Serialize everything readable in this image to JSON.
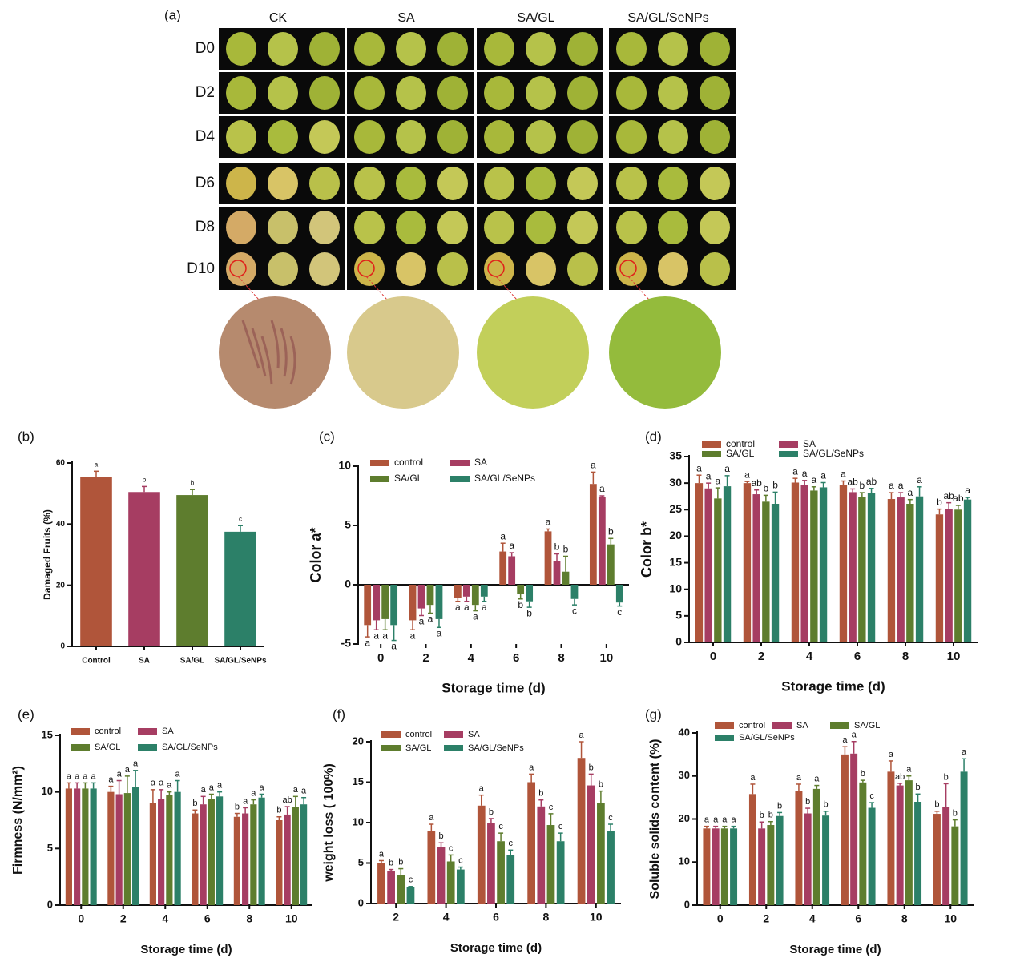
{
  "photo_panel": {
    "label": "(a)",
    "columns": [
      "CK",
      "SA",
      "SA/GL",
      "SA/GL/SeNPs"
    ],
    "rows": [
      "D0",
      "D2",
      "D4",
      "D6",
      "D8",
      "D10"
    ]
  },
  "chart_data": [
    {
      "type": "bar",
      "label": "(b)",
      "ylabel": "Damaged Fruits (%)",
      "categories": [
        "Control",
        "SA",
        "SA/GL",
        "SA/GL/SeNPs"
      ],
      "values": [
        55.5,
        50.5,
        49.5,
        37.5
      ],
      "errors": [
        1.8,
        1.8,
        1.8,
        2.0
      ],
      "significance": [
        "a",
        "b",
        "b",
        "c"
      ],
      "colors": [
        "#b0553a",
        "#a63d62",
        "#5e7d2e",
        "#2c8068"
      ],
      "ylim": [
        0,
        60
      ],
      "yticks": [
        0,
        20,
        40,
        60
      ]
    },
    {
      "type": "grouped-bar",
      "label": "(c)",
      "ylabel": "Color a*",
      "xlabel": "Storage time (d)",
      "categories": [
        0,
        2,
        4,
        6,
        8,
        10
      ],
      "ylim": [
        -5,
        10
      ],
      "yticks": [
        -5,
        0,
        5,
        10
      ],
      "series": [
        {
          "name": "control",
          "color": "#b0553a",
          "values": [
            -3.4,
            -3.0,
            -1.1,
            2.8,
            4.5,
            8.5
          ],
          "errors": [
            1.0,
            0.8,
            0.3,
            0.7,
            0.2,
            1.0
          ],
          "significance": [
            "a",
            "a",
            "a",
            "a",
            "a",
            "a"
          ]
        },
        {
          "name": "SA",
          "color": "#a63d62",
          "values": [
            -3.0,
            -2.0,
            -1.0,
            2.4,
            2.0,
            7.4
          ],
          "errors": [
            0.8,
            0.6,
            0.4,
            0.3,
            0.6,
            0.1
          ],
          "significance": [
            "a",
            "a",
            "a",
            "a",
            "b",
            "a"
          ]
        },
        {
          "name": "SA/GL",
          "color": "#5e7d2e",
          "values": [
            -2.9,
            -1.7,
            -1.7,
            -0.8,
            1.1,
            3.4
          ],
          "errors": [
            0.9,
            0.7,
            0.5,
            0.4,
            1.3,
            0.5
          ],
          "significance": [
            "a",
            "a",
            "a",
            "b",
            "b",
            "b"
          ]
        },
        {
          "name": "SA/GL/SeNPs",
          "color": "#2c8068",
          "values": [
            -3.4,
            -2.9,
            -1.0,
            -1.4,
            -1.2,
            -1.5
          ],
          "errors": [
            1.3,
            0.7,
            0.4,
            0.5,
            0.5,
            0.3
          ],
          "significance": [
            "a",
            "a",
            "a",
            "b",
            "c",
            "c"
          ]
        }
      ]
    },
    {
      "type": "grouped-bar",
      "label": "(d)",
      "ylabel": "Color b*",
      "xlabel": "Storage time (d)",
      "categories": [
        0,
        2,
        4,
        6,
        8,
        10
      ],
      "ylim": [
        0,
        35
      ],
      "yticks": [
        0,
        5,
        10,
        15,
        20,
        25,
        30,
        35
      ],
      "series": [
        {
          "name": "control",
          "color": "#b0553a",
          "values": [
            30.0,
            30.0,
            30.1,
            29.6,
            27.0,
            24.1
          ],
          "errors": [
            1.5,
            0.3,
            0.8,
            0.8,
            1.2,
            1.0
          ],
          "significance": [
            "a",
            "a",
            "a",
            "a",
            "a",
            "b"
          ]
        },
        {
          "name": "SA",
          "color": "#a63d62",
          "values": [
            29.0,
            27.9,
            29.7,
            28.3,
            27.3,
            25.1
          ],
          "errors": [
            1.0,
            0.8,
            0.8,
            0.6,
            0.9,
            1.2
          ],
          "significance": [
            "a",
            "ab",
            "a",
            "ab",
            "a",
            "ab"
          ]
        },
        {
          "name": "SA/GL",
          "color": "#5e7d2e",
          "values": [
            27.1,
            26.5,
            28.6,
            27.4,
            26.1,
            25.0
          ],
          "errors": [
            2.0,
            1.2,
            0.7,
            0.8,
            0.8,
            0.8
          ],
          "significance": [
            "a",
            "b",
            "a",
            "b",
            "a",
            "ab"
          ]
        },
        {
          "name": "SA/GL/SeNPs",
          "color": "#2c8068",
          "values": [
            29.4,
            26.1,
            29.2,
            28.1,
            27.5,
            26.9
          ],
          "errors": [
            2.0,
            2.2,
            0.9,
            0.9,
            1.8,
            0.4
          ],
          "significance": [
            "a",
            "b",
            "a",
            "ab",
            "a",
            "a"
          ]
        }
      ]
    },
    {
      "type": "grouped-bar",
      "label": "(e)",
      "ylabel": "Firmness (N/mm²)",
      "xlabel": "Storage time (d)",
      "categories": [
        0,
        2,
        4,
        6,
        8,
        10
      ],
      "ylim": [
        0,
        15
      ],
      "yticks": [
        0,
        5,
        10,
        15
      ],
      "series": [
        {
          "name": "control",
          "color": "#b0553a",
          "values": [
            10.3,
            10.0,
            9.0,
            8.1,
            7.8,
            7.5
          ],
          "errors": [
            0.5,
            0.5,
            1.2,
            0.3,
            0.3,
            0.3
          ],
          "significance": [
            "a",
            "a",
            "a",
            "b",
            "b",
            "b"
          ]
        },
        {
          "name": "SA",
          "color": "#a63d62",
          "values": [
            10.3,
            9.8,
            9.4,
            8.9,
            8.1,
            8.0
          ],
          "errors": [
            0.5,
            1.2,
            0.8,
            0.7,
            0.5,
            0.7
          ],
          "significance": [
            "a",
            "a",
            "a",
            "a",
            "a",
            "ab"
          ]
        },
        {
          "name": "SA/GL",
          "color": "#5e7d2e",
          "values": [
            10.3,
            9.9,
            9.7,
            9.4,
            8.9,
            8.7
          ],
          "errors": [
            0.5,
            1.5,
            0.3,
            0.4,
            0.4,
            0.9
          ],
          "significance": [
            "a",
            "a",
            "a",
            "a",
            "a",
            "a"
          ]
        },
        {
          "name": "SA/GL/SeNPs",
          "color": "#2c8068",
          "values": [
            10.3,
            10.4,
            10.0,
            9.6,
            9.5,
            8.9
          ],
          "errors": [
            0.5,
            1.5,
            1.0,
            0.4,
            0.3,
            0.6
          ],
          "significance": [
            "a",
            "a",
            "a",
            "a",
            "a",
            "a"
          ]
        }
      ]
    },
    {
      "type": "grouped-bar",
      "label": "(f)",
      "ylabel": "weight loss ( 100%)",
      "xlabel": "Storage time (d)",
      "categories": [
        2,
        4,
        6,
        8,
        10
      ],
      "ylim": [
        0,
        20
      ],
      "yticks": [
        0,
        5,
        10,
        15,
        20
      ],
      "series": [
        {
          "name": "control",
          "color": "#b0553a",
          "values": [
            5.0,
            9.0,
            12.1,
            15.0,
            18.0
          ],
          "errors": [
            0.3,
            0.8,
            1.3,
            1.0,
            2.0
          ],
          "significance": [
            "a",
            "a",
            "a",
            "a",
            "a"
          ]
        },
        {
          "name": "SA",
          "color": "#a63d62",
          "values": [
            4.0,
            7.0,
            9.9,
            12.0,
            14.6
          ],
          "errors": [
            0.2,
            0.5,
            0.6,
            0.8,
            1.4
          ],
          "significance": [
            "b",
            "b",
            "b",
            "b",
            "b"
          ]
        },
        {
          "name": "SA/GL",
          "color": "#5e7d2e",
          "values": [
            3.5,
            5.2,
            7.7,
            9.7,
            12.4
          ],
          "errors": [
            0.8,
            0.8,
            1.0,
            1.4,
            1.5
          ],
          "significance": [
            "b",
            "c",
            "c",
            "c",
            "b"
          ]
        },
        {
          "name": "SA/GL/SeNPs",
          "color": "#2c8068",
          "values": [
            2.0,
            4.2,
            6.0,
            7.7,
            9.0
          ],
          "errors": [
            0.1,
            0.3,
            0.6,
            1.0,
            0.8
          ],
          "significance": [
            "c",
            "c",
            "c",
            "c",
            "c"
          ]
        }
      ]
    },
    {
      "type": "grouped-bar",
      "label": "(g)",
      "ylabel": "Soluble solids content (%)",
      "xlabel": "Storage time (d)",
      "categories": [
        0,
        2,
        4,
        6,
        8,
        10
      ],
      "ylim": [
        0,
        40
      ],
      "yticks": [
        0,
        10,
        20,
        30,
        40
      ],
      "series": [
        {
          "name": "control",
          "color": "#b0553a",
          "values": [
            17.8,
            25.8,
            26.6,
            35.0,
            31.0,
            21.2
          ],
          "errors": [
            0.5,
            2.3,
            1.5,
            1.8,
            2.5,
            0.6
          ],
          "significance": [
            "a",
            "a",
            "a",
            "a",
            "a",
            "b"
          ]
        },
        {
          "name": "SA",
          "color": "#a63d62",
          "values": [
            17.8,
            17.8,
            21.3,
            35.2,
            27.8,
            22.7
          ],
          "errors": [
            0.5,
            1.5,
            1.2,
            2.8,
            0.5,
            5.5
          ],
          "significance": [
            "a",
            "b",
            "b",
            "a",
            "ab",
            "b"
          ]
        },
        {
          "name": "SA/GL",
          "color": "#5e7d2e",
          "values": [
            17.8,
            18.6,
            27.0,
            28.5,
            29.0,
            18.3
          ],
          "errors": [
            0.5,
            0.8,
            0.8,
            0.5,
            1.0,
            1.5
          ],
          "significance": [
            "a",
            "b",
            "a",
            "b",
            "a",
            "b"
          ]
        },
        {
          "name": "SA/GL/SeNPs",
          "color": "#2c8068",
          "values": [
            17.8,
            20.7,
            20.8,
            22.6,
            24.0,
            31.0
          ],
          "errors": [
            0.5,
            0.8,
            1.0,
            1.2,
            1.8,
            3.0
          ],
          "significance": [
            "a",
            "b",
            "b",
            "c",
            "b",
            "a"
          ]
        }
      ]
    }
  ]
}
